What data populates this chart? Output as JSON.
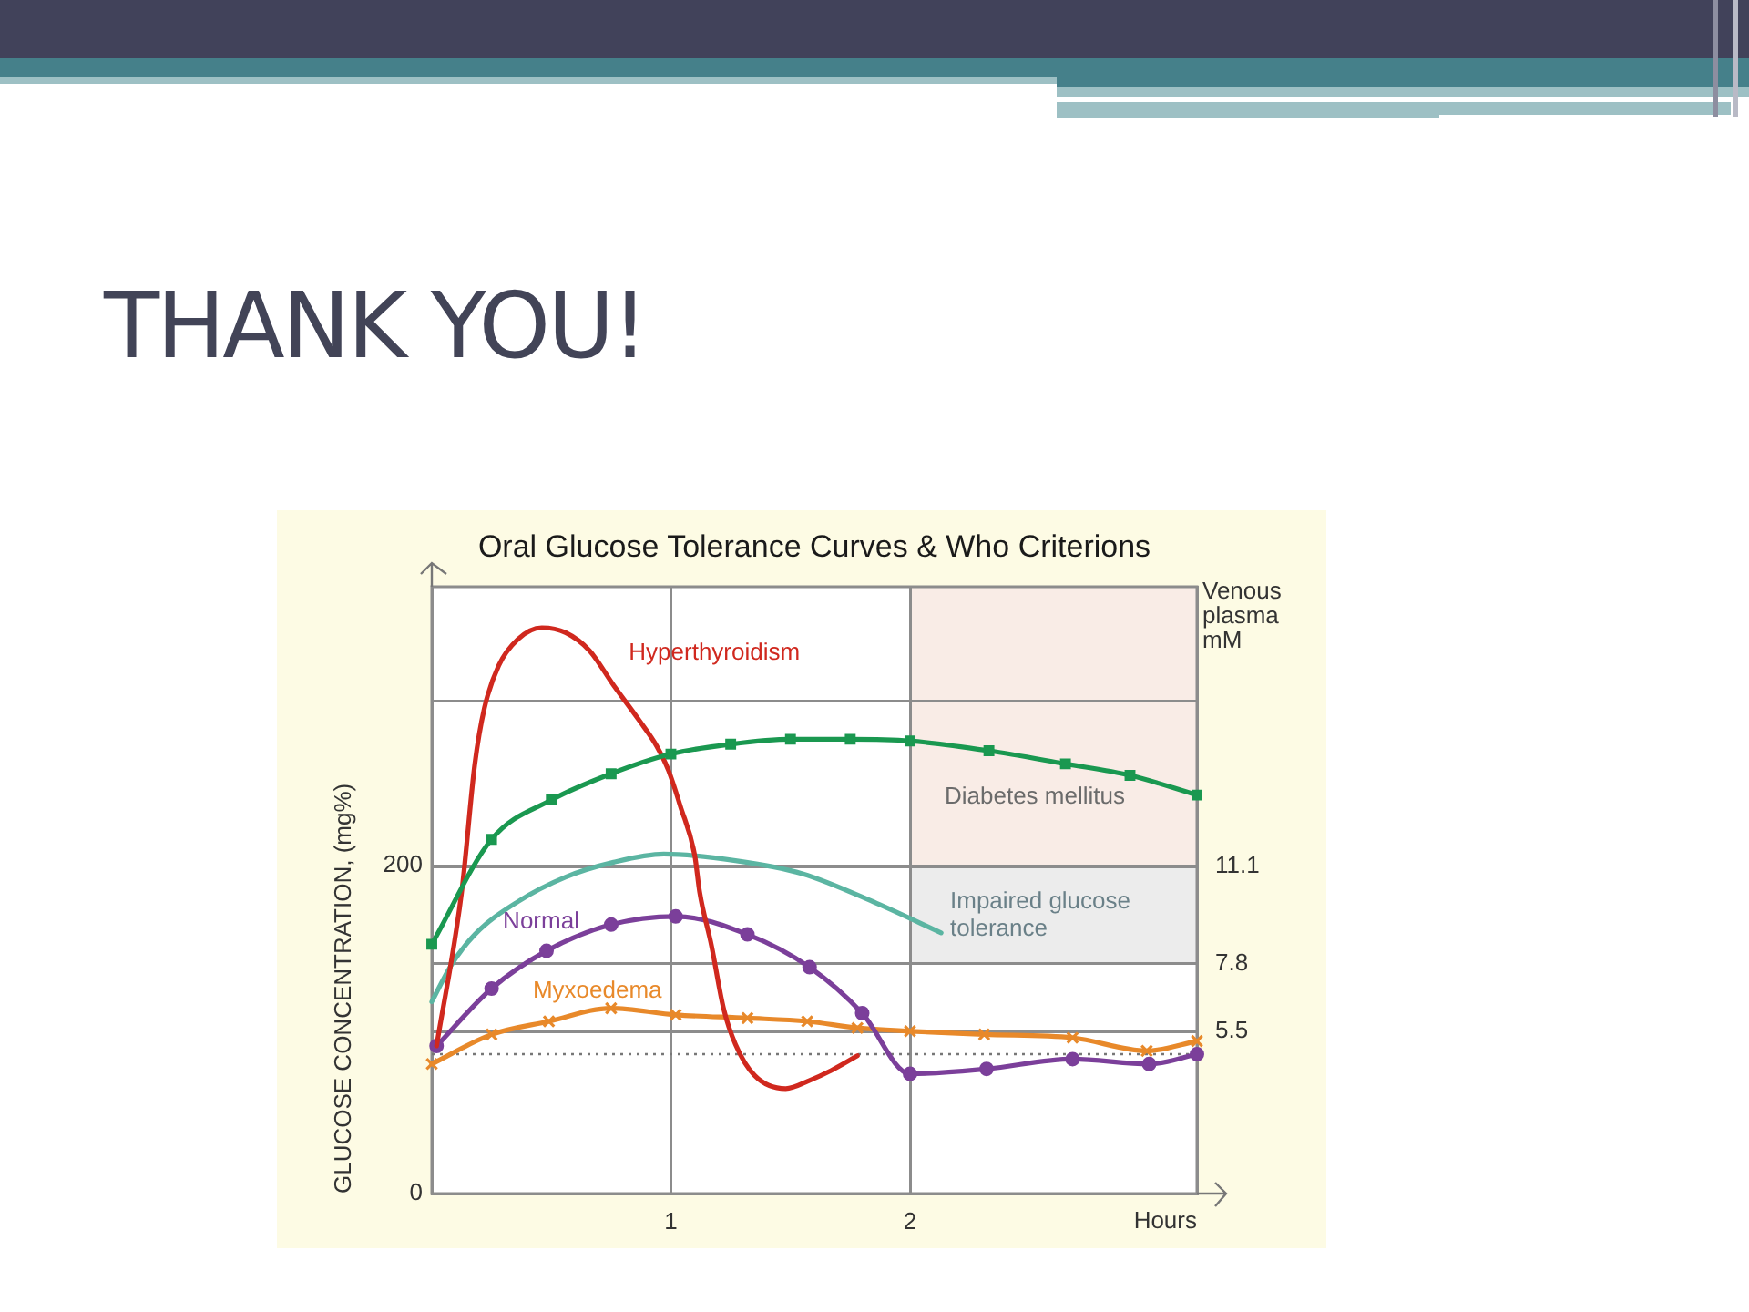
{
  "chart_data": {
    "type": "line",
    "title": "THANK YOU!",
    "subtitle": "Oral Glucose Tolerance Curves & Who Criterions",
    "xlabel": "Hours",
    "ylabel": "GLUCOSE CONCENTRATION, (mg%)",
    "y2label": "Venous plasma mM",
    "xlim": [
      0,
      3.2
    ],
    "xticks": [
      1,
      2
    ],
    "ylim": [
      0,
      370
    ],
    "yticks": [
      0,
      200,
      {
        "value": 300,
        "label": null
      }
    ],
    "y2lim": [
      0,
      20.6
    ],
    "y2ticks": [
      5.5,
      7.8,
      11.1
    ],
    "grid": true,
    "bands": [
      {
        "axis": "y2",
        "from": 11.1,
        "to": 20.6,
        "label": "Diabetes mellitus",
        "color": "#f9ece6"
      },
      {
        "axis": "y2",
        "from": 7.8,
        "to": 11.1,
        "label": "Impaired glucose tolerance",
        "color": "#ececec"
      }
    ],
    "ref_lines": [
      {
        "axis": "y",
        "value": 85,
        "line_style": "dotted",
        "color": "#777777"
      }
    ],
    "series": [
      {
        "color": "#1a9850",
        "marker": "square",
        "x": [
          0,
          0.25,
          0.5,
          0.75,
          1,
          1.25,
          1.5,
          1.75,
          2,
          2.33,
          2.65,
          2.92,
          3.2
        ],
        "values": [
          152,
          216,
          240,
          256,
          268,
          274,
          277,
          277,
          276,
          270,
          262,
          255,
          243
        ]
      },
      {
        "name": "Hyperthyroidism",
        "color": "#d0281e",
        "marker": "none",
        "x": [
          0.02,
          0.125,
          0.18,
          0.22,
          0.28,
          0.36,
          0.46,
          0.56,
          0.66,
          0.76,
          0.87,
          0.94,
          0.99,
          1.04,
          1.1,
          1.12,
          1.17,
          1.22,
          1.27,
          1.35,
          1.48,
          1.58,
          1.67,
          1.78
        ],
        "values": [
          90,
          184,
          262,
          296,
          322,
          338,
          345,
          342,
          331,
          310,
          288,
          273,
          258,
          236,
          206,
          184,
          151,
          113,
          91,
          72,
          64,
          69,
          75,
          84
        ]
      },
      {
        "color": "#5bb5a2",
        "marker": "none",
        "x": [
          0,
          0.08,
          0.18,
          0.36,
          0.56,
          0.76,
          0.97,
          1.27,
          1.55,
          1.86,
          2.13
        ],
        "values": [
          117,
          139,
          158,
          178,
          193,
          202,
          207,
          203,
          195,
          177,
          159
        ]
      },
      {
        "name": "Normal",
        "color": "#7b3f9a",
        "marker": "circle",
        "x": [
          0.02,
          0.25,
          0.48,
          0.75,
          1.02,
          1.32,
          1.58,
          1.8,
          2,
          2.32,
          2.68,
          3,
          3.2
        ],
        "values": [
          90,
          125,
          148,
          164,
          169,
          158,
          138,
          110,
          73,
          76,
          82,
          79,
          85
        ]
      },
      {
        "name": "Myxoedema",
        "color": "#e8892a",
        "marker": "cross",
        "x": [
          0,
          0.25,
          0.49,
          0.75,
          1.02,
          1.32,
          1.57,
          1.78,
          2,
          2.31,
          2.68,
          2.99,
          3.2
        ],
        "values": [
          79,
          97,
          105,
          113,
          109,
          107,
          105,
          101,
          99,
          97,
          95,
          87,
          93
        ]
      }
    ]
  }
}
